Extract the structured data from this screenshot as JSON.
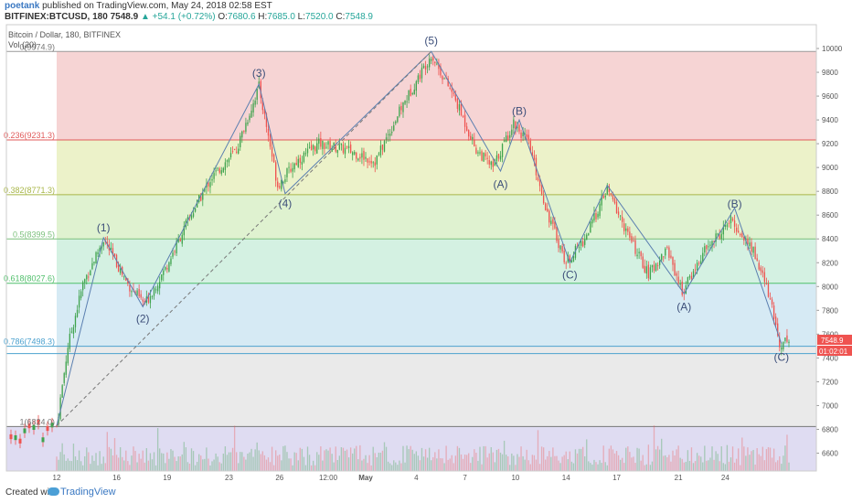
{
  "header": {
    "author": "poetank",
    "published": "published on TradingView.com, May 24, 2018 02:58 EST",
    "symbol": "BITFINEX:BTCUSD, 180",
    "last": "7548.9",
    "change": "▲ +54.1 (+0.72%)",
    "o_label": "O:",
    "o": "7680.6",
    "h_label": "H:",
    "h": "7685.0",
    "l_label": "L:",
    "l": "7520.0",
    "c_label": "C:",
    "c": "7548.9"
  },
  "footer": {
    "created": "Created with",
    "brand": "TradingView"
  },
  "colors": {
    "up": "#26a69a",
    "down": "#ef5350",
    "up_candle": "#3fa34d",
    "fib_0": "#f4cccc",
    "fib_236": "#e9f0c0",
    "fib_382": "#d9f0c8",
    "fib_5": "#cdeedd",
    "fib_618": "#cfe6f2",
    "fib_786": "#e6e6e6",
    "fib_1": "#d9d6f0",
    "wave": "#5b7fb0",
    "price_tag": "#ef5350"
  },
  "chart_data": {
    "type": "candlestick",
    "title": "Bitcoin / Dollar, 180, BITFINEX",
    "volume_label": "Vol (20)",
    "y_axis": {
      "min": 6450,
      "max": 10200,
      "ticks": [
        6600,
        6800,
        7000,
        7200,
        7400,
        7600,
        7800,
        8000,
        8200,
        8400,
        8600,
        8800,
        9000,
        9200,
        9400,
        9600,
        9800,
        10000
      ]
    },
    "x_axis": {
      "ticks": [
        "12",
        "16",
        "19",
        "23",
        "26",
        "12:00",
        "May",
        "4",
        "7",
        "10",
        "14",
        "17",
        "21",
        "24"
      ]
    },
    "last_price": "7548.9",
    "countdown": "01:02:01",
    "fib_levels": [
      {
        "label": "0(9974.9)",
        "price": 9974.9
      },
      {
        "label": "0.236(9231.3)",
        "price": 9231.3
      },
      {
        "label": "0.382(8771.3)",
        "price": 8771.3
      },
      {
        "label": "0.5(8399.5)",
        "price": 8399.5
      },
      {
        "label": "0.618(8027.6)",
        "price": 8027.6
      },
      {
        "label": "0.786(7498.3)",
        "price": 7498.3
      },
      {
        "label": "1(6824.0)",
        "price": 6824.0
      }
    ],
    "price_path": [
      {
        "i": 0,
        "price": 6830
      },
      {
        "i": 6,
        "price": 7500
      },
      {
        "i": 14,
        "price": 8020
      },
      {
        "i": 25,
        "price": 8400
      },
      {
        "i": 38,
        "price": 8020
      },
      {
        "i": 47,
        "price": 7850
      },
      {
        "i": 58,
        "price": 8150
      },
      {
        "i": 70,
        "price": 8550
      },
      {
        "i": 82,
        "price": 8900
      },
      {
        "i": 96,
        "price": 9150
      },
      {
        "i": 108,
        "price": 9680
      },
      {
        "i": 118,
        "price": 8850
      },
      {
        "i": 128,
        "price": 9050
      },
      {
        "i": 140,
        "price": 9200
      },
      {
        "i": 155,
        "price": 9150
      },
      {
        "i": 170,
        "price": 9050
      },
      {
        "i": 184,
        "price": 9500
      },
      {
        "i": 200,
        "price": 9950
      },
      {
        "i": 212,
        "price": 9600
      },
      {
        "i": 224,
        "price": 9150
      },
      {
        "i": 233,
        "price": 9000
      },
      {
        "i": 244,
        "price": 9380
      },
      {
        "i": 252,
        "price": 9200
      },
      {
        "i": 262,
        "price": 8620
      },
      {
        "i": 272,
        "price": 8200
      },
      {
        "i": 282,
        "price": 8400
      },
      {
        "i": 294,
        "price": 8820
      },
      {
        "i": 306,
        "price": 8400
      },
      {
        "i": 316,
        "price": 8100
      },
      {
        "i": 326,
        "price": 8320
      },
      {
        "i": 334,
        "price": 7950
      },
      {
        "i": 346,
        "price": 8300
      },
      {
        "i": 360,
        "price": 8550
      },
      {
        "i": 372,
        "price": 8300
      },
      {
        "i": 380,
        "price": 7950
      },
      {
        "i": 386,
        "price": 7520
      },
      {
        "i": 390,
        "price": 7548.9
      }
    ],
    "wave_labels": [
      {
        "text": "(1)",
        "i": 25,
        "price": 8400,
        "pos": "above"
      },
      {
        "text": "(2)",
        "i": 46,
        "price": 7820,
        "pos": "below"
      },
      {
        "text": "(3)",
        "i": 108,
        "price": 9700,
        "pos": "above"
      },
      {
        "text": "(4)",
        "i": 122,
        "price": 8790,
        "pos": "below"
      },
      {
        "text": "(5)",
        "i": 200,
        "price": 9975,
        "pos": "above"
      },
      {
        "text": "(A)",
        "i": 237,
        "price": 8950,
        "pos": "below"
      },
      {
        "text": "(B)",
        "i": 247,
        "price": 9380,
        "pos": "above"
      },
      {
        "text": "(C)",
        "i": 274,
        "price": 8190,
        "pos": "below"
      },
      {
        "text": "(A)",
        "i": 335,
        "price": 7920,
        "pos": "below"
      },
      {
        "text": "(B)",
        "i": 362,
        "price": 8600,
        "pos": "above"
      },
      {
        "text": "(C)",
        "i": 387,
        "price": 7500,
        "pos": "below"
      }
    ],
    "wave_path": [
      {
        "i": 0,
        "price": 6830
      },
      {
        "i": 25,
        "price": 8410
      },
      {
        "i": 46,
        "price": 7830
      },
      {
        "i": 108,
        "price": 9700
      },
      {
        "i": 122,
        "price": 8780
      },
      {
        "i": 200,
        "price": 9975
      },
      {
        "i": 237,
        "price": 8970
      },
      {
        "i": 247,
        "price": 9400
      },
      {
        "i": 274,
        "price": 8200
      },
      {
        "i": 294,
        "price": 8850
      },
      {
        "i": 335,
        "price": 7940
      },
      {
        "i": 362,
        "price": 8660
      },
      {
        "i": 387,
        "price": 7520
      }
    ],
    "trend_line": [
      {
        "i": 0,
        "price": 6830
      },
      {
        "i": 200,
        "price": 9975
      }
    ]
  }
}
